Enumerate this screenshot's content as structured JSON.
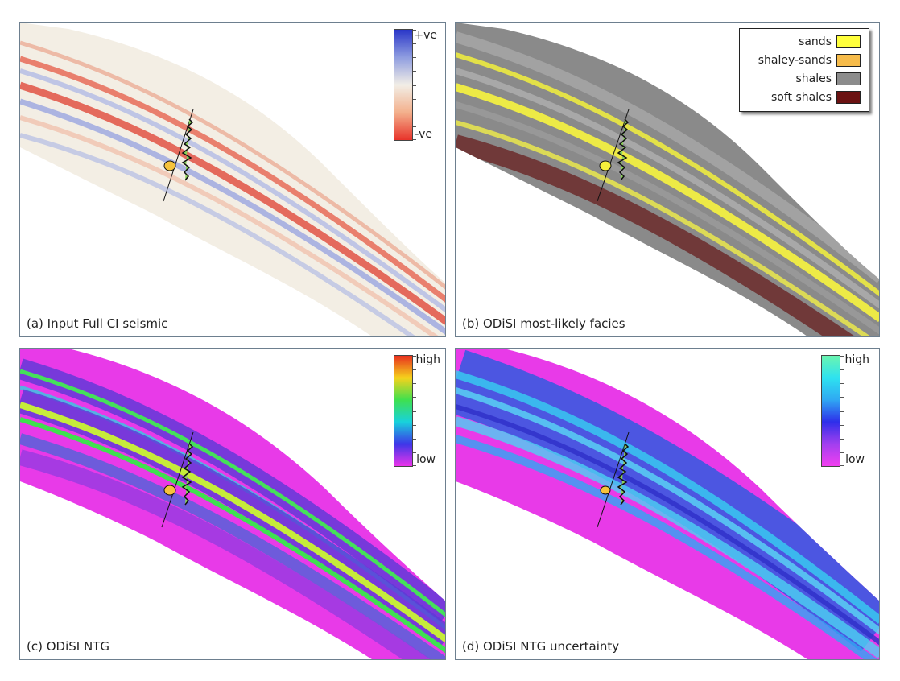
{
  "panels": [
    {
      "id": "a",
      "caption": "(a) Input Full CI seismic",
      "colorbar": {
        "top_label": "+ve",
        "bottom_label": "-ve",
        "colors": [
          "#2a37c8",
          "#8f9de0",
          "#f2eee6",
          "#f3b08c",
          "#e8332a"
        ]
      }
    },
    {
      "id": "b",
      "caption": "(b) ODiSI most-likely facies",
      "legend": [
        {
          "label": "sands",
          "color": "#ffff3c"
        },
        {
          "label": "shaley-sands",
          "color": "#f6bb4a"
        },
        {
          "label": "shales",
          "color": "#8c8c8c"
        },
        {
          "label": "soft shales",
          "color": "#6b1212"
        }
      ]
    },
    {
      "id": "c",
      "caption": "(c) ODiSI NTG",
      "colorbar": {
        "top_label": "high",
        "bottom_label": "low",
        "colors": [
          "#e8301e",
          "#f5d21c",
          "#3fe04e",
          "#18d2dc",
          "#3d36e8",
          "#ea34ea"
        ]
      }
    },
    {
      "id": "d",
      "caption": "(d) ODiSI NTG uncertainty",
      "colorbar": {
        "top_label": "high",
        "bottom_label": "low",
        "colors": [
          "#6af5b0",
          "#2ee2f0",
          "#2fa8f3",
          "#2e2eea",
          "#a23fef",
          "#f23ff0"
        ]
      }
    }
  ]
}
